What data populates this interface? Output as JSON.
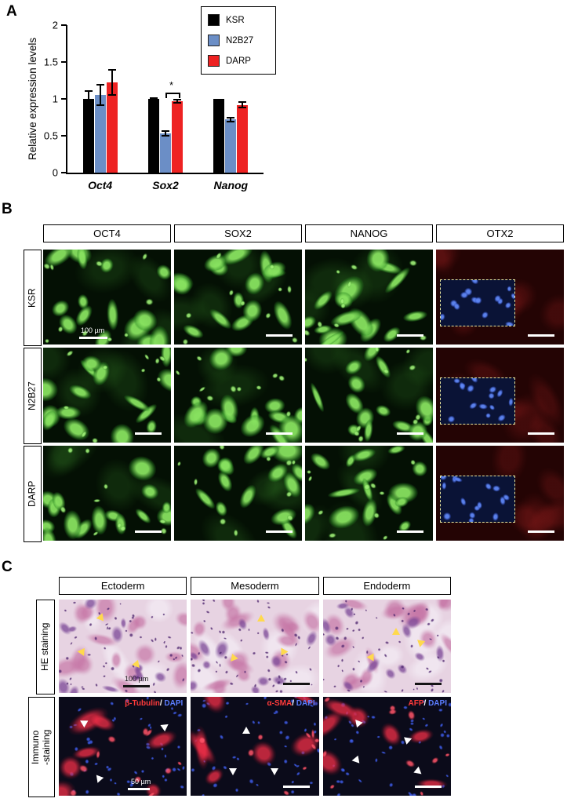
{
  "panelA": {
    "label": "A"
  },
  "chart_data": {
    "type": "bar",
    "categories": [
      "Oct4",
      "Sox2",
      "Nanog"
    ],
    "series": [
      {
        "name": "KSR",
        "color": "#000000",
        "values": [
          1.0,
          1.0,
          1.0
        ],
        "errors": [
          0.12,
          0.02,
          0.0
        ]
      },
      {
        "name": "N2B27",
        "color": "#6b8ec6",
        "values": [
          1.05,
          0.53,
          0.72
        ],
        "errors": [
          0.15,
          0.04,
          0.04
        ]
      },
      {
        "name": "DARP",
        "color": "#ee2222",
        "values": [
          1.22,
          0.97,
          0.92
        ],
        "errors": [
          0.18,
          0.03,
          0.05
        ]
      }
    ],
    "title": "",
    "xlabel": "",
    "ylabel": "Relative expression levels",
    "ylim": [
      0,
      2
    ],
    "yticks": [
      0,
      0.5,
      1,
      1.5,
      2
    ],
    "grid": false,
    "legend_position": "top-right",
    "significance": [
      {
        "category": "Sox2",
        "between": [
          "N2B27",
          "DARP"
        ],
        "label": "*"
      }
    ]
  },
  "panelB": {
    "label": "B",
    "columns": [
      "OCT4",
      "SOX2",
      "NANOG",
      "OTX2"
    ],
    "rows": [
      "KSR",
      "N2B27",
      "DARP"
    ],
    "scale_label": "100 µm"
  },
  "panelC": {
    "label": "C",
    "columns": [
      "Ectoderm",
      "Mesoderm",
      "Endoderm"
    ],
    "rows": [
      "HE staining",
      "Immuno\n-staining"
    ],
    "he_scale_label": "100 µm",
    "immuno_scale_label": "50 µm",
    "separator": "/",
    "immuno_markers": [
      {
        "marker": "β-Tubulin",
        "counter": "DAPI"
      },
      {
        "marker": "α-SMA",
        "counter": "DAPI"
      },
      {
        "marker": "AFP",
        "counter": "DAPI"
      }
    ]
  }
}
